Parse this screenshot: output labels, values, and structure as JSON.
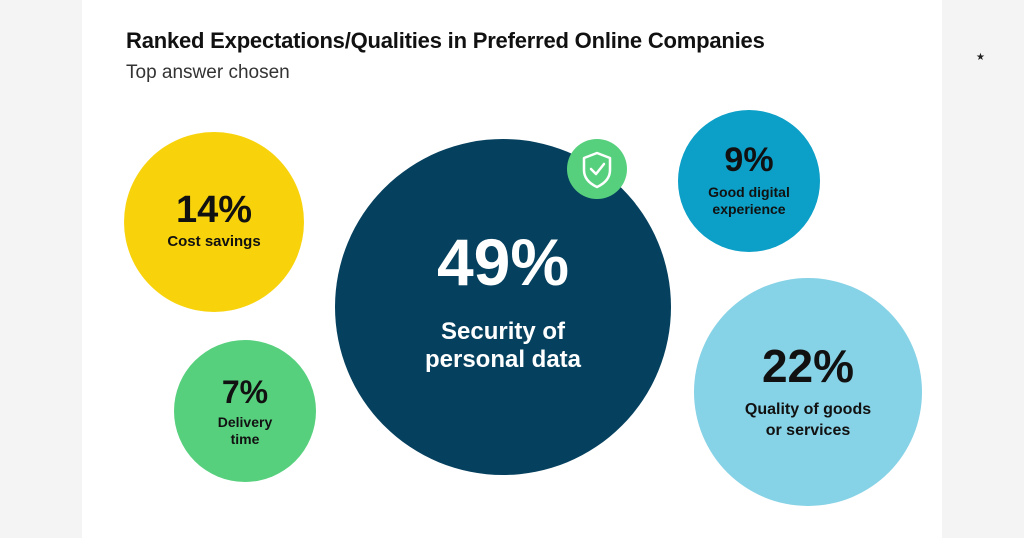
{
  "title": "Ranked Expectations/Qualities in Preferred Online Companies",
  "subtitle": "Top answer chosen",
  "star": "★",
  "chart_data": {
    "type": "bubble",
    "title": "Ranked Expectations/Qualities in Preferred Online Companies",
    "subtitle": "Top answer chosen",
    "unit": "%",
    "items": [
      {
        "label": "Security of personal data",
        "value": 49,
        "value_text": "49%",
        "lines": [
          "Security of",
          "personal data"
        ],
        "color": "#05405e",
        "text_color": "#ffffff",
        "icon": "shield-check-icon"
      },
      {
        "label": "Quality of goods or services",
        "value": 22,
        "value_text": "22%",
        "lines": [
          "Quality of goods",
          "or services"
        ],
        "color": "#86d2e6",
        "text_color": "#111111"
      },
      {
        "label": "Cost savings",
        "value": 14,
        "value_text": "14%",
        "lines": [
          "Cost savings"
        ],
        "color": "#f8d30c",
        "text_color": "#111111"
      },
      {
        "label": "Good digital experience",
        "value": 9,
        "value_text": "9%",
        "lines": [
          "Good digital",
          "experience"
        ],
        "color": "#0c9fc7",
        "text_color": "#111111"
      },
      {
        "label": "Delivery time",
        "value": 7,
        "value_text": "7%",
        "lines": [
          "Delivery",
          "time"
        ],
        "color": "#57d07e",
        "text_color": "#111111"
      }
    ],
    "icon_color": "#57d07e"
  }
}
